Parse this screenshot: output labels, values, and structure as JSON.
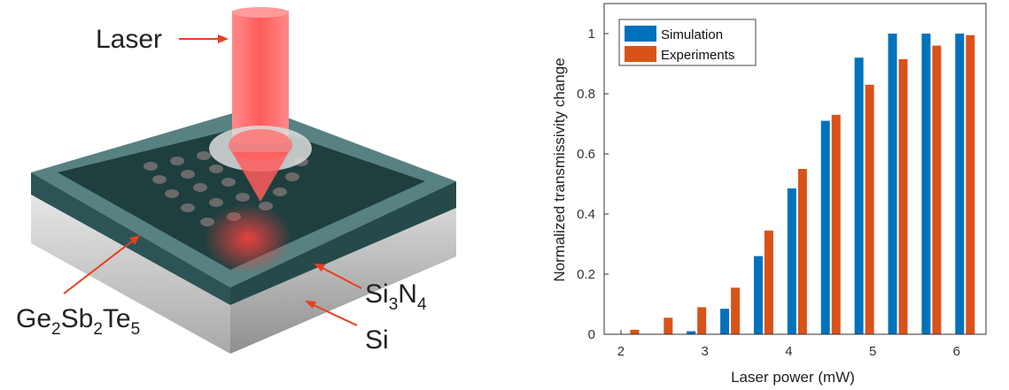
{
  "diagram": {
    "laser_label": "Laser",
    "gst_label": {
      "p1": "Ge",
      "s1": "2",
      "p2": "Sb",
      "s2": "2",
      "p3": "Te",
      "s3": "5"
    },
    "sin_label": {
      "p1": "Si",
      "s1": "3",
      "p2": "N",
      "s2": "4"
    },
    "si_label": "Si",
    "colors": {
      "laser": "#ff6b6b",
      "arrow": "#e8401c",
      "top_layer": "#2f5b5b",
      "substrate": "#c8c8c8"
    }
  },
  "chart_data": {
    "type": "bar",
    "xlabel": "Laser power (mW)",
    "ylabel": "Normalized transmissivity change",
    "xlim": [
      1.8,
      6.35
    ],
    "ylim": [
      0,
      1.1
    ],
    "xticks": [
      "2",
      "3",
      "4",
      "5",
      "6"
    ],
    "yticks": [
      "0",
      "0.2",
      "0.4",
      "0.6",
      "0.8",
      "1"
    ],
    "x": [
      2.1,
      2.5,
      2.9,
      3.3,
      3.7,
      4.1,
      4.5,
      4.9,
      5.3,
      5.7,
      6.1
    ],
    "series": [
      {
        "name": "Simulation",
        "color": "#0072bd",
        "values": [
          0.0,
          0.0,
          0.01,
          0.085,
          0.26,
          0.485,
          0.71,
          0.92,
          1.0,
          1.0,
          1.0
        ]
      },
      {
        "name": "Experiments",
        "color": "#d95319",
        "values": [
          0.015,
          0.055,
          0.09,
          0.155,
          0.345,
          0.55,
          0.73,
          0.83,
          0.915,
          0.96,
          0.995
        ]
      }
    ],
    "legend_position": "top-left",
    "grid": false
  }
}
